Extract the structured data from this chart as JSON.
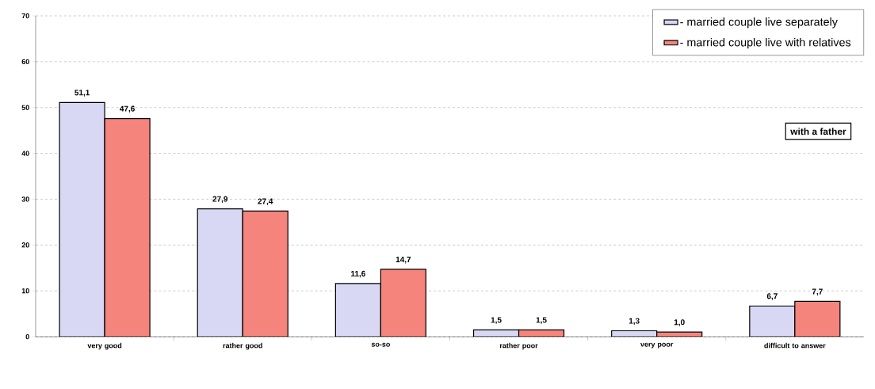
{
  "chart_data": {
    "type": "bar",
    "categories": [
      "very good",
      "rather good",
      "so-so",
      "rather poor",
      "very poor",
      "difficult to answer"
    ],
    "series": [
      {
        "name": "- married couple live separately",
        "color": "#d8d8f4",
        "values": [
          51.1,
          27.9,
          11.6,
          1.5,
          1.3,
          6.7
        ],
        "value_labels": [
          "51,1",
          "27,9",
          "11,6",
          "1,5",
          "1,3",
          "6,7"
        ]
      },
      {
        "name": "- married couple live with relatives",
        "color": "#f4847c",
        "values": [
          47.6,
          27.4,
          14.7,
          1.5,
          1.0,
          7.7
        ],
        "value_labels": [
          "47,6",
          "27,4",
          "14,7",
          "1,5",
          "1,0",
          "7,7"
        ]
      }
    ],
    "ylim": [
      0,
      70
    ],
    "yticks": [
      0,
      10,
      20,
      30,
      40,
      50,
      60,
      70
    ],
    "grid": "y",
    "legend": "top right",
    "annotations": [
      "with a father"
    ]
  }
}
